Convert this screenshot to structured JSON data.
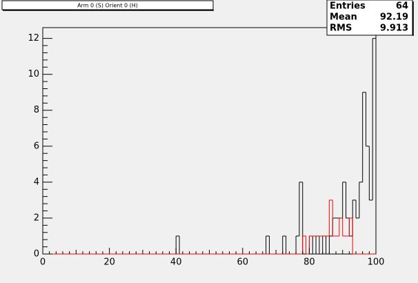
{
  "chart_data": {
    "type": "histogram",
    "title": "Arm 0 (S) Orient 0 (H)",
    "bins": [
      0,
      1,
      2,
      3,
      4,
      5,
      6,
      7,
      8,
      9,
      10,
      11,
      12,
      13,
      14,
      15,
      16,
      17,
      18,
      19,
      20,
      21,
      22,
      23,
      24,
      25,
      26,
      27,
      28,
      29,
      30,
      31,
      32,
      33,
      34,
      35,
      36,
      37,
      38,
      39,
      40,
      41,
      42,
      43,
      44,
      45,
      46,
      47,
      48,
      49,
      50,
      51,
      52,
      53,
      54,
      55,
      56,
      57,
      58,
      59,
      60,
      61,
      62,
      63,
      64,
      65,
      66,
      67,
      68,
      69,
      70,
      71,
      72,
      73,
      74,
      75,
      76,
      77,
      78,
      79,
      80,
      81,
      82,
      83,
      84,
      85,
      86,
      87,
      88,
      89,
      90,
      91,
      92,
      93,
      94,
      95,
      96,
      97,
      98,
      99,
      100
    ],
    "series": [
      {
        "color": "#000000",
        "values": [
          0,
          0,
          0,
          0,
          0,
          0,
          0,
          0,
          0,
          0,
          0,
          0,
          0,
          0,
          0,
          0,
          0,
          0,
          0,
          0,
          0,
          0,
          0,
          0,
          0,
          0,
          0,
          0,
          0,
          0,
          0,
          0,
          0,
          0,
          0,
          0,
          0,
          0,
          0,
          0,
          1,
          0,
          0,
          0,
          0,
          0,
          0,
          0,
          0,
          0,
          0,
          0,
          0,
          0,
          0,
          0,
          0,
          0,
          0,
          0,
          0,
          0,
          0,
          0,
          0,
          0,
          0,
          1,
          0,
          0,
          0,
          0,
          1,
          0,
          0,
          0,
          1,
          4,
          0,
          0,
          1,
          0,
          1,
          0,
          1,
          0,
          1,
          2,
          2,
          2,
          4,
          2,
          1,
          3,
          2,
          4,
          9,
          6,
          3,
          12
        ]
      },
      {
        "color": "#ff0000",
        "values": [
          0,
          0,
          0,
          0,
          0,
          0,
          0,
          0,
          0,
          0,
          0,
          0,
          0,
          0,
          0,
          0,
          0,
          0,
          0,
          0,
          0,
          0,
          0,
          0,
          0,
          0,
          0,
          0,
          0,
          0,
          0,
          0,
          0,
          0,
          0,
          0,
          0,
          0,
          0,
          0,
          0,
          0,
          0,
          0,
          0,
          0,
          0,
          0,
          0,
          0,
          0,
          0,
          0,
          0,
          0,
          0,
          0,
          0,
          0,
          0,
          0,
          0,
          0,
          0,
          0,
          0,
          0,
          0,
          0,
          0,
          0,
          0,
          0,
          0,
          0,
          0,
          0,
          0,
          1,
          0,
          1,
          1,
          1,
          1,
          1,
          1,
          3,
          1,
          1,
          2,
          1,
          1,
          2,
          0,
          0,
          0,
          0,
          0,
          0,
          0
        ]
      }
    ],
    "xlim": [
      0,
      100
    ],
    "ylim": [
      0,
      12.6
    ],
    "xticks": [
      0,
      20,
      40,
      60,
      80,
      100
    ],
    "yticks": [
      0,
      2,
      4,
      6,
      8,
      10,
      12
    ],
    "stats": [
      {
        "label": "Entries",
        "value": 64
      },
      {
        "label": "Mean",
        "value": 92.19
      },
      {
        "label": "RMS",
        "value": 9.913
      }
    ]
  }
}
